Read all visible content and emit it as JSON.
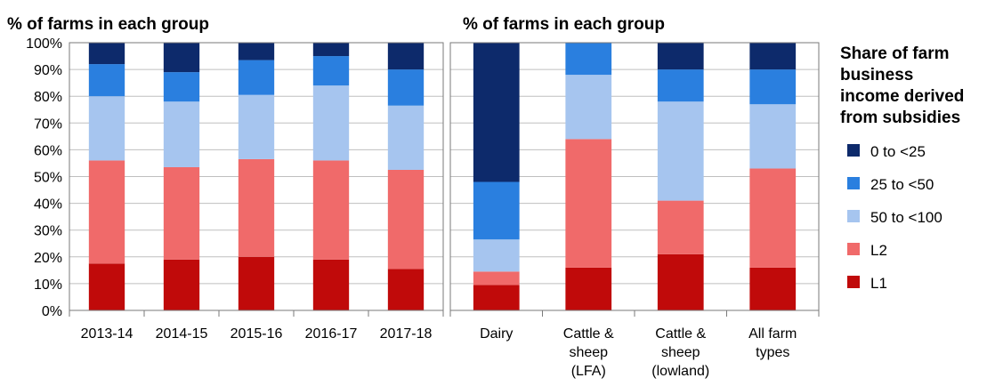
{
  "colors": {
    "0 to <25": "#0d2a6b",
    "25 to <50": "#2a7fdf",
    "50 to <100": "#a6c5ef",
    "L2": "#f06a6a",
    "L1": "#c00a0a"
  },
  "legend": {
    "title_lines": [
      "Share of farm",
      "business",
      "income derived",
      "from subsidies"
    ],
    "items": [
      "0 to <25",
      "25 to <50",
      "50 to <100",
      "L2",
      "L1"
    ]
  },
  "chart_data": [
    {
      "type": "bar",
      "stacked": true,
      "title": "% of farms in each group",
      "xlabel": "",
      "ylabel": "",
      "ylim": [
        0,
        100
      ],
      "yticks": [
        "0%",
        "10%",
        "20%",
        "30%",
        "40%",
        "50%",
        "60%",
        "70%",
        "80%",
        "90%",
        "100%"
      ],
      "grid": true,
      "categories": [
        [
          "2013-14"
        ],
        [
          "2014-15"
        ],
        [
          "2015-16"
        ],
        [
          "2016-17"
        ],
        [
          "2017-18"
        ]
      ],
      "series": [
        {
          "name": "L1",
          "values": [
            17.5,
            19,
            20,
            19,
            15.5
          ]
        },
        {
          "name": "L2",
          "values": [
            38.5,
            34.5,
            36.5,
            37,
            37
          ]
        },
        {
          "name": "50 to <100",
          "values": [
            24,
            24.5,
            24,
            28,
            24
          ]
        },
        {
          "name": "25 to <50",
          "values": [
            12,
            11,
            13,
            11,
            13.5
          ]
        },
        {
          "name": "0 to <25",
          "values": [
            8,
            11,
            6.5,
            5,
            10
          ]
        }
      ]
    },
    {
      "type": "bar",
      "stacked": true,
      "title": "% of farms in each group",
      "xlabel": "",
      "ylabel": "",
      "ylim": [
        0,
        100
      ],
      "grid": true,
      "categories": [
        [
          "Dairy"
        ],
        [
          "Cattle &",
          "sheep",
          "(LFA)"
        ],
        [
          "Cattle &",
          "sheep",
          "(lowland)"
        ],
        [
          "All farm",
          "types"
        ]
      ],
      "series": [
        {
          "name": "L1",
          "values": [
            9.5,
            16,
            21,
            16
          ]
        },
        {
          "name": "L2",
          "values": [
            5,
            48,
            20,
            37
          ]
        },
        {
          "name": "50 to <100",
          "values": [
            12,
            24,
            37,
            24
          ]
        },
        {
          "name": "25 to <50",
          "values": [
            21.5,
            12,
            12,
            13
          ]
        },
        {
          "name": "0 to <25",
          "values": [
            52,
            0,
            10,
            10
          ]
        }
      ]
    }
  ]
}
